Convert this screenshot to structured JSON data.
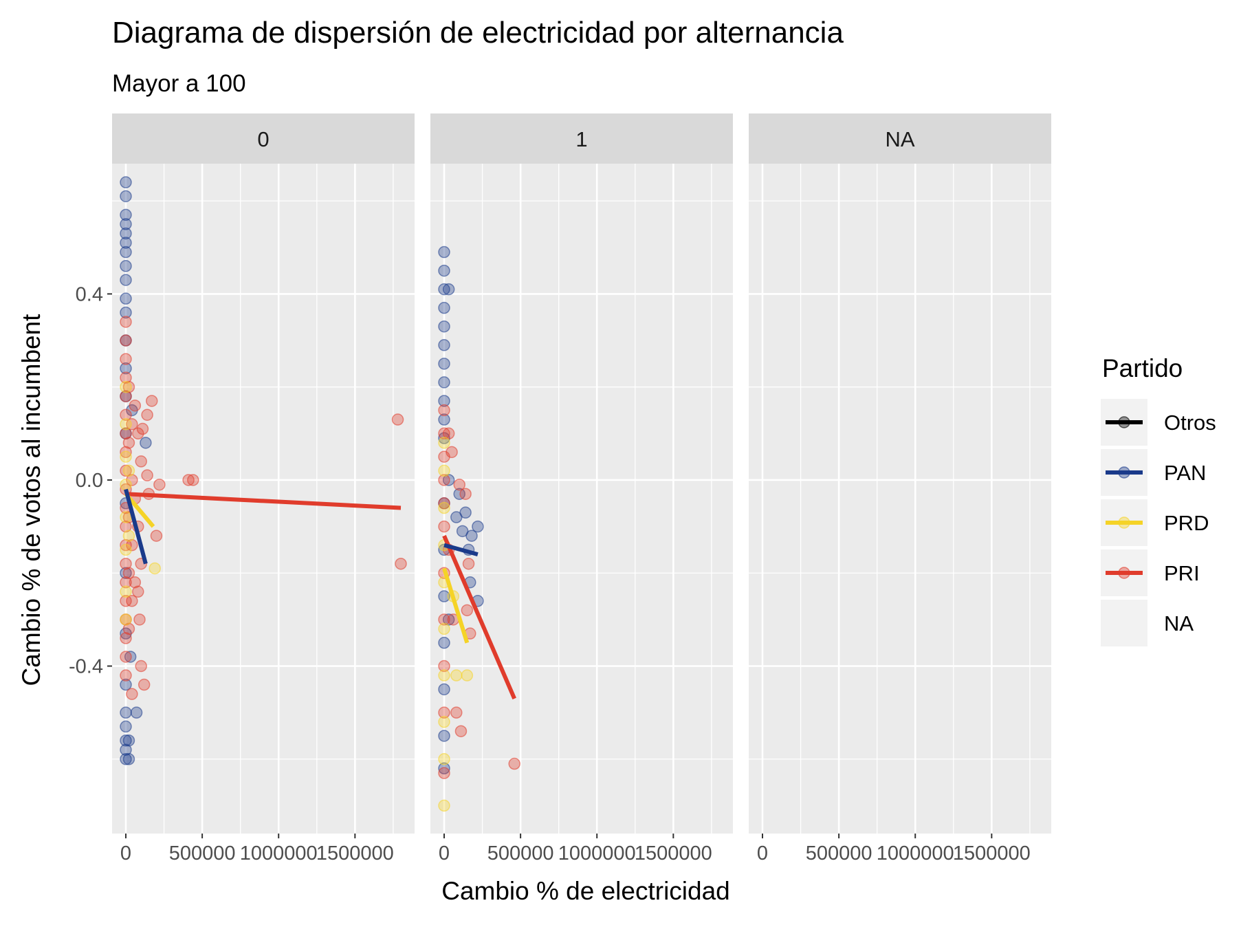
{
  "chart_data": {
    "type": "scatter",
    "title": "Diagrama de dispersión de electricidad por alternancia",
    "subtitle": "Mayor a 100",
    "xlabel": "Cambio % de electricidad",
    "ylabel": "Cambio % de votos al incumbent",
    "xlim": [
      -90000,
      1890000
    ],
    "ylim": [
      -0.76,
      0.68
    ],
    "x_ticks": [
      0,
      500000,
      1000000,
      1500000
    ],
    "x_tick_labels": [
      "0",
      "500000",
      "1000000",
      "1500000"
    ],
    "y_ticks": [
      -0.4,
      0.0,
      0.4
    ],
    "y_tick_labels": [
      "-0.4",
      "0.0",
      "0.4"
    ],
    "grid": true,
    "legend": {
      "title": "Partido",
      "position": "right",
      "entries": [
        "Otros",
        "PAN",
        "PRD",
        "PRI",
        "NA"
      ]
    },
    "colors": {
      "Otros": "#000000",
      "PAN": "#1a3a8a",
      "PRD": "#f5d327",
      "PRI": "#e03c2c",
      "NA": "#ebebeb",
      "panel_bg": "#ebebeb",
      "strip_bg": "#d9d9d9",
      "grid": "#ffffff"
    },
    "facets": [
      {
        "label": "0",
        "fit_lines": [
          {
            "series": "PRI",
            "x": [
              0,
              1800000
            ],
            "y": [
              -0.03,
              -0.06
            ]
          },
          {
            "series": "PRD",
            "x": [
              0,
              180000
            ],
            "y": [
              -0.03,
              -0.1
            ]
          },
          {
            "series": "PAN",
            "x": [
              0,
              130000
            ],
            "y": [
              -0.02,
              -0.18
            ]
          }
        ],
        "points": [
          {
            "series": "PAN",
            "x": 0,
            "y": 0.64
          },
          {
            "series": "PAN",
            "x": 0,
            "y": 0.61
          },
          {
            "series": "PAN",
            "x": 0,
            "y": 0.57
          },
          {
            "series": "PAN",
            "x": 0,
            "y": 0.55
          },
          {
            "series": "PAN",
            "x": 0,
            "y": 0.53
          },
          {
            "series": "PAN",
            "x": 0,
            "y": 0.51
          },
          {
            "series": "PAN",
            "x": 0,
            "y": 0.49
          },
          {
            "series": "PAN",
            "x": 0,
            "y": 0.46
          },
          {
            "series": "PAN",
            "x": 0,
            "y": 0.43
          },
          {
            "series": "PAN",
            "x": 0,
            "y": 0.39
          },
          {
            "series": "PAN",
            "x": 0,
            "y": 0.36
          },
          {
            "series": "PAN",
            "x": 0,
            "y": 0.3
          },
          {
            "series": "PAN",
            "x": 0,
            "y": 0.24
          },
          {
            "series": "PAN",
            "x": 0,
            "y": 0.18
          },
          {
            "series": "PAN",
            "x": 0,
            "y": 0.1
          },
          {
            "series": "PAN",
            "x": 0,
            "y": -0.05
          },
          {
            "series": "PAN",
            "x": 0,
            "y": -0.2
          },
          {
            "series": "PAN",
            "x": 0,
            "y": -0.33
          },
          {
            "series": "PAN",
            "x": 0,
            "y": -0.44
          },
          {
            "series": "PAN",
            "x": 0,
            "y": -0.5
          },
          {
            "series": "PAN",
            "x": 0,
            "y": -0.53
          },
          {
            "series": "PAN",
            "x": 0,
            "y": -0.56
          },
          {
            "series": "PAN",
            "x": 0,
            "y": -0.58
          },
          {
            "series": "PAN",
            "x": 0,
            "y": -0.6
          },
          {
            "series": "PAN",
            "x": 20000,
            "y": -0.6
          },
          {
            "series": "PAN",
            "x": 20000,
            "y": -0.56
          },
          {
            "series": "PAN",
            "x": 30000,
            "y": -0.38
          },
          {
            "series": "PAN",
            "x": 70000,
            "y": -0.5
          },
          {
            "series": "PAN",
            "x": 130000,
            "y": 0.08
          },
          {
            "series": "PAN",
            "x": 40000,
            "y": 0.15
          },
          {
            "series": "PRI",
            "x": 0,
            "y": 0.34
          },
          {
            "series": "PRI",
            "x": 0,
            "y": 0.3
          },
          {
            "series": "PRI",
            "x": 0,
            "y": 0.26
          },
          {
            "series": "PRI",
            "x": 0,
            "y": 0.22
          },
          {
            "series": "PRI",
            "x": 0,
            "y": 0.18
          },
          {
            "series": "PRI",
            "x": 0,
            "y": 0.14
          },
          {
            "series": "PRI",
            "x": 0,
            "y": 0.1
          },
          {
            "series": "PRI",
            "x": 0,
            "y": 0.06
          },
          {
            "series": "PRI",
            "x": 0,
            "y": 0.02
          },
          {
            "series": "PRI",
            "x": 0,
            "y": -0.02
          },
          {
            "series": "PRI",
            "x": 0,
            "y": -0.06
          },
          {
            "series": "PRI",
            "x": 0,
            "y": -0.1
          },
          {
            "series": "PRI",
            "x": 0,
            "y": -0.14
          },
          {
            "series": "PRI",
            "x": 0,
            "y": -0.18
          },
          {
            "series": "PRI",
            "x": 0,
            "y": -0.22
          },
          {
            "series": "PRI",
            "x": 0,
            "y": -0.26
          },
          {
            "series": "PRI",
            "x": 0,
            "y": -0.3
          },
          {
            "series": "PRI",
            "x": 0,
            "y": -0.34
          },
          {
            "series": "PRI",
            "x": 0,
            "y": -0.38
          },
          {
            "series": "PRI",
            "x": 0,
            "y": -0.42
          },
          {
            "series": "PRI",
            "x": 20000,
            "y": 0.2
          },
          {
            "series": "PRI",
            "x": 20000,
            "y": 0.08
          },
          {
            "series": "PRI",
            "x": 20000,
            "y": -0.08
          },
          {
            "series": "PRI",
            "x": 20000,
            "y": -0.2
          },
          {
            "series": "PRI",
            "x": 20000,
            "y": -0.32
          },
          {
            "series": "PRI",
            "x": 40000,
            "y": 0.12
          },
          {
            "series": "PRI",
            "x": 40000,
            "y": 0.0
          },
          {
            "series": "PRI",
            "x": 40000,
            "y": -0.14
          },
          {
            "series": "PRI",
            "x": 40000,
            "y": -0.26
          },
          {
            "series": "PRI",
            "x": 40000,
            "y": -0.46
          },
          {
            "series": "PRI",
            "x": 60000,
            "y": 0.16
          },
          {
            "series": "PRI",
            "x": 60000,
            "y": -0.04
          },
          {
            "series": "PRI",
            "x": 60000,
            "y": -0.22
          },
          {
            "series": "PRI",
            "x": 80000,
            "y": 0.1
          },
          {
            "series": "PRI",
            "x": 80000,
            "y": -0.1
          },
          {
            "series": "PRI",
            "x": 80000,
            "y": -0.24
          },
          {
            "series": "PRI",
            "x": 90000,
            "y": -0.3
          },
          {
            "series": "PRI",
            "x": 100000,
            "y": 0.04
          },
          {
            "series": "PRI",
            "x": 100000,
            "y": -0.18
          },
          {
            "series": "PRI",
            "x": 100000,
            "y": -0.4
          },
          {
            "series": "PRI",
            "x": 110000,
            "y": 0.11
          },
          {
            "series": "PRI",
            "x": 120000,
            "y": -0.44
          },
          {
            "series": "PRI",
            "x": 140000,
            "y": 0.14
          },
          {
            "series": "PRI",
            "x": 140000,
            "y": 0.01
          },
          {
            "series": "PRI",
            "x": 150000,
            "y": -0.03
          },
          {
            "series": "PRI",
            "x": 170000,
            "y": 0.17
          },
          {
            "series": "PRI",
            "x": 200000,
            "y": -0.12
          },
          {
            "series": "PRI",
            "x": 220000,
            "y": -0.01
          },
          {
            "series": "PRI",
            "x": 410000,
            "y": 0.0
          },
          {
            "series": "PRI",
            "x": 440000,
            "y": 0.0
          },
          {
            "series": "PRI",
            "x": 1780000,
            "y": 0.13
          },
          {
            "series": "PRI",
            "x": 1800000,
            "y": -0.18
          },
          {
            "series": "PRD",
            "x": 0,
            "y": 0.2
          },
          {
            "series": "PRD",
            "x": 0,
            "y": 0.12
          },
          {
            "series": "PRD",
            "x": 0,
            "y": 0.05
          },
          {
            "series": "PRD",
            "x": 0,
            "y": -0.01
          },
          {
            "series": "PRD",
            "x": 0,
            "y": -0.08
          },
          {
            "series": "PRD",
            "x": 0,
            "y": -0.15
          },
          {
            "series": "PRD",
            "x": 0,
            "y": -0.24
          },
          {
            "series": "PRD",
            "x": 0,
            "y": -0.3
          },
          {
            "series": "PRD",
            "x": 20000,
            "y": 0.02
          },
          {
            "series": "PRD",
            "x": 20000,
            "y": -0.12
          },
          {
            "series": "PRD",
            "x": 190000,
            "y": -0.19
          }
        ]
      },
      {
        "label": "1",
        "fit_lines": [
          {
            "series": "PRI",
            "x": [
              0,
              460000
            ],
            "y": [
              -0.12,
              -0.47
            ]
          },
          {
            "series": "PRD",
            "x": [
              0,
              150000
            ],
            "y": [
              -0.19,
              -0.35
            ]
          },
          {
            "series": "PAN",
            "x": [
              0,
              220000
            ],
            "y": [
              -0.14,
              -0.16
            ]
          }
        ],
        "points": [
          {
            "series": "PAN",
            "x": 0,
            "y": 0.49
          },
          {
            "series": "PAN",
            "x": 0,
            "y": 0.45
          },
          {
            "series": "PAN",
            "x": 0,
            "y": 0.41
          },
          {
            "series": "PAN",
            "x": 0,
            "y": 0.37
          },
          {
            "series": "PAN",
            "x": 0,
            "y": 0.33
          },
          {
            "series": "PAN",
            "x": 0,
            "y": 0.29
          },
          {
            "series": "PAN",
            "x": 0,
            "y": 0.25
          },
          {
            "series": "PAN",
            "x": 0,
            "y": 0.21
          },
          {
            "series": "PAN",
            "x": 0,
            "y": 0.17
          },
          {
            "series": "PAN",
            "x": 0,
            "y": 0.13
          },
          {
            "series": "PAN",
            "x": 0,
            "y": 0.09
          },
          {
            "series": "PAN",
            "x": 0,
            "y": -0.05
          },
          {
            "series": "PAN",
            "x": 0,
            "y": -0.15
          },
          {
            "series": "PAN",
            "x": 0,
            "y": -0.25
          },
          {
            "series": "PAN",
            "x": 0,
            "y": -0.35
          },
          {
            "series": "PAN",
            "x": 0,
            "y": -0.45
          },
          {
            "series": "PAN",
            "x": 0,
            "y": -0.55
          },
          {
            "series": "PAN",
            "x": 0,
            "y": -0.62
          },
          {
            "series": "PAN",
            "x": 30000,
            "y": 0.41
          },
          {
            "series": "PAN",
            "x": 30000,
            "y": 0.0
          },
          {
            "series": "PAN",
            "x": 80000,
            "y": -0.08
          },
          {
            "series": "PAN",
            "x": 100000,
            "y": -0.03
          },
          {
            "series": "PAN",
            "x": 120000,
            "y": -0.11
          },
          {
            "series": "PAN",
            "x": 140000,
            "y": -0.07
          },
          {
            "series": "PAN",
            "x": 160000,
            "y": -0.15
          },
          {
            "series": "PAN",
            "x": 170000,
            "y": -0.22
          },
          {
            "series": "PAN",
            "x": 180000,
            "y": -0.12
          },
          {
            "series": "PAN",
            "x": 220000,
            "y": -0.1
          },
          {
            "series": "PAN",
            "x": 220000,
            "y": -0.26
          },
          {
            "series": "PAN",
            "x": 30000,
            "y": -0.3
          },
          {
            "series": "PRI",
            "x": 0,
            "y": 0.15
          },
          {
            "series": "PRI",
            "x": 0,
            "y": 0.1
          },
          {
            "series": "PRI",
            "x": 0,
            "y": 0.05
          },
          {
            "series": "PRI",
            "x": 0,
            "y": 0.0
          },
          {
            "series": "PRI",
            "x": 0,
            "y": -0.05
          },
          {
            "series": "PRI",
            "x": 0,
            "y": -0.1
          },
          {
            "series": "PRI",
            "x": 0,
            "y": -0.2
          },
          {
            "series": "PRI",
            "x": 0,
            "y": -0.3
          },
          {
            "series": "PRI",
            "x": 0,
            "y": -0.4
          },
          {
            "series": "PRI",
            "x": 0,
            "y": -0.5
          },
          {
            "series": "PRI",
            "x": 0,
            "y": -0.63
          },
          {
            "series": "PRI",
            "x": 30000,
            "y": 0.1
          },
          {
            "series": "PRI",
            "x": 30000,
            "y": -0.15
          },
          {
            "series": "PRI",
            "x": 50000,
            "y": 0.06
          },
          {
            "series": "PRI",
            "x": 60000,
            "y": -0.3
          },
          {
            "series": "PRI",
            "x": 80000,
            "y": -0.5
          },
          {
            "series": "PRI",
            "x": 100000,
            "y": -0.01
          },
          {
            "series": "PRI",
            "x": 110000,
            "y": -0.54
          },
          {
            "series": "PRI",
            "x": 140000,
            "y": -0.03
          },
          {
            "series": "PRI",
            "x": 150000,
            "y": -0.28
          },
          {
            "series": "PRI",
            "x": 160000,
            "y": -0.18
          },
          {
            "series": "PRI",
            "x": 170000,
            "y": -0.33
          },
          {
            "series": "PRI",
            "x": 460000,
            "y": -0.61
          },
          {
            "series": "PRD",
            "x": 0,
            "y": 0.08
          },
          {
            "series": "PRD",
            "x": 0,
            "y": 0.02
          },
          {
            "series": "PRD",
            "x": 0,
            "y": -0.06
          },
          {
            "series": "PRD",
            "x": 0,
            "y": -0.14
          },
          {
            "series": "PRD",
            "x": 0,
            "y": -0.22
          },
          {
            "series": "PRD",
            "x": 0,
            "y": -0.32
          },
          {
            "series": "PRD",
            "x": 0,
            "y": -0.42
          },
          {
            "series": "PRD",
            "x": 0,
            "y": -0.52
          },
          {
            "series": "PRD",
            "x": 0,
            "y": -0.6
          },
          {
            "series": "PRD",
            "x": 0,
            "y": -0.7
          },
          {
            "series": "PRD",
            "x": 60000,
            "y": -0.25
          },
          {
            "series": "PRD",
            "x": 80000,
            "y": -0.42
          },
          {
            "series": "PRD",
            "x": 150000,
            "y": -0.42
          }
        ]
      },
      {
        "label": "NA",
        "fit_lines": [],
        "points": []
      }
    ]
  }
}
